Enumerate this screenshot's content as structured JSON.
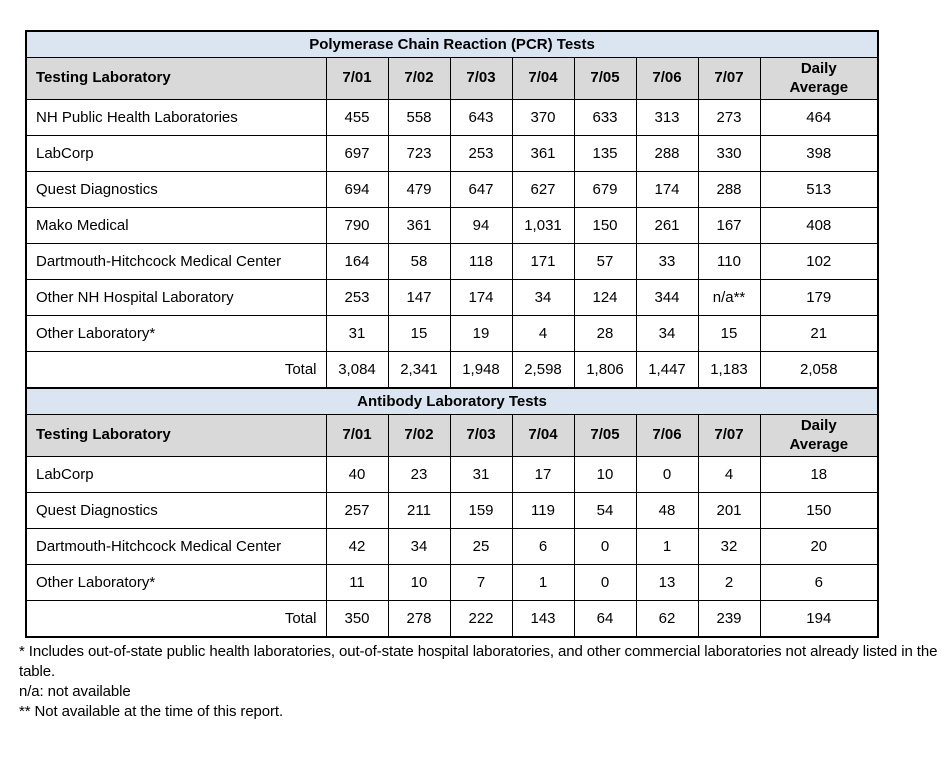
{
  "colors": {
    "title_bg": "#dbe5f1",
    "header_bg": "#d9d9d9",
    "border": "#000000",
    "text": "#000000"
  },
  "tables": [
    {
      "title": "Polymerase Chain Reaction (PCR) Tests",
      "header": [
        "Testing Laboratory",
        "7/01",
        "7/02",
        "7/03",
        "7/04",
        "7/05",
        "7/06",
        "7/07",
        "Daily\nAverage"
      ],
      "rows": [
        {
          "label": "NH Public Health Laboratories",
          "values": [
            "455",
            "558",
            "643",
            "370",
            "633",
            "313",
            "273",
            "464"
          ]
        },
        {
          "label": "LabCorp",
          "values": [
            "697",
            "723",
            "253",
            "361",
            "135",
            "288",
            "330",
            "398"
          ]
        },
        {
          "label": "Quest Diagnostics",
          "values": [
            "694",
            "479",
            "647",
            "627",
            "679",
            "174",
            "288",
            "513"
          ]
        },
        {
          "label": "Mako Medical",
          "values": [
            "790",
            "361",
            "94",
            "1,031",
            "150",
            "261",
            "167",
            "408"
          ]
        },
        {
          "label": "Dartmouth-Hitchcock Medical Center",
          "values": [
            "164",
            "58",
            "118",
            "171",
            "57",
            "33",
            "110",
            "102"
          ]
        },
        {
          "label": "Other NH Hospital Laboratory",
          "values": [
            "253",
            "147",
            "174",
            "34",
            "124",
            "344",
            "n/a**",
            "179"
          ]
        },
        {
          "label": "Other Laboratory*",
          "values": [
            "31",
            "15",
            "19",
            "4",
            "28",
            "34",
            "15",
            "21"
          ]
        },
        {
          "label": "Total",
          "is_total": true,
          "values": [
            "3,084",
            "2,341",
            "1,948",
            "2,598",
            "1,806",
            "1,447",
            "1,183",
            "2,058"
          ]
        }
      ]
    },
    {
      "title": "Antibody Laboratory Tests",
      "header": [
        "Testing Laboratory",
        "7/01",
        "7/02",
        "7/03",
        "7/04",
        "7/05",
        "7/06",
        "7/07",
        "Daily\nAverage"
      ],
      "rows": [
        {
          "label": "LabCorp",
          "values": [
            "40",
            "23",
            "31",
            "17",
            "10",
            "0",
            "4",
            "18"
          ]
        },
        {
          "label": "Quest Diagnostics",
          "values": [
            "257",
            "211",
            "159",
            "119",
            "54",
            "48",
            "201",
            "150"
          ]
        },
        {
          "label": "Dartmouth-Hitchcock Medical Center",
          "values": [
            "42",
            "34",
            "25",
            "6",
            "0",
            "1",
            "32",
            "20"
          ]
        },
        {
          "label": "Other Laboratory*",
          "values": [
            "11",
            "10",
            "7",
            "1",
            "0",
            "13",
            "2",
            "6"
          ]
        },
        {
          "label": "Total",
          "is_total": true,
          "values": [
            "350",
            "278",
            "222",
            "143",
            "64",
            "62",
            "239",
            "194"
          ]
        }
      ]
    }
  ],
  "footnotes": [
    "* Includes out-of-state public health laboratories, out-of-state hospital laboratories, and other commercial laboratories not already listed in the table.",
    "n/a: not available",
    "** Not available at the time of this report."
  ]
}
